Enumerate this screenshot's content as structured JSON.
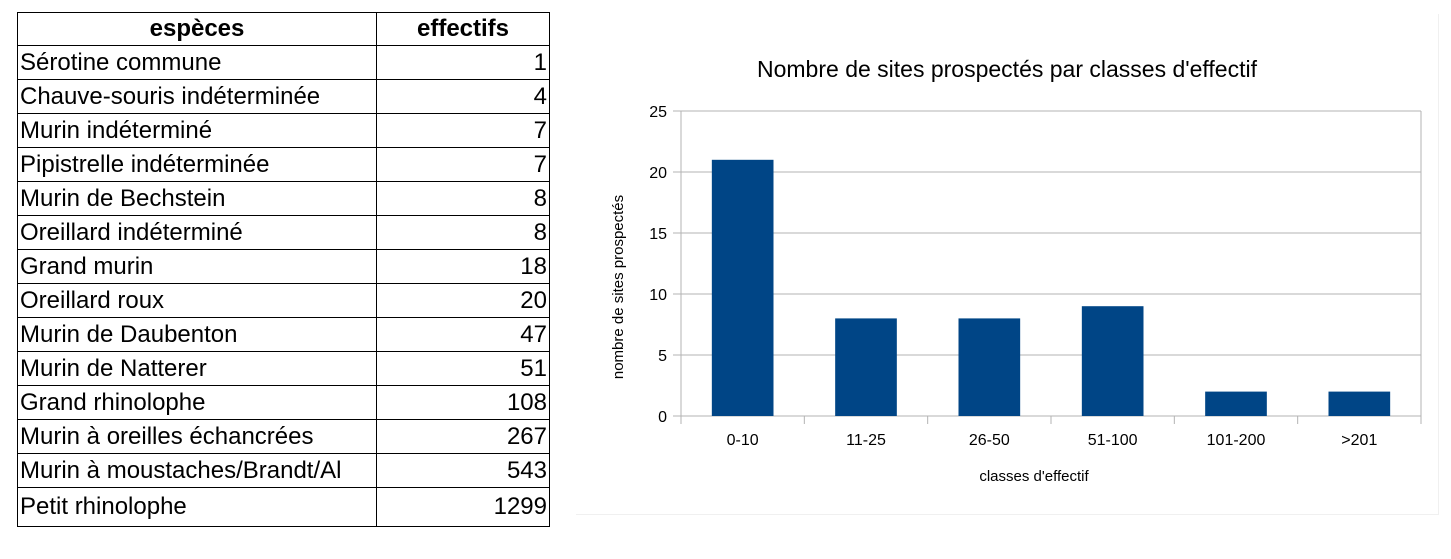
{
  "table": {
    "headers": [
      "espèces",
      "effectifs"
    ],
    "rows": [
      {
        "name": "Sérotine commune",
        "value": "1"
      },
      {
        "name": "Chauve-souris indéterminée",
        "value": "4"
      },
      {
        "name": "Murin indéterminé",
        "value": "7"
      },
      {
        "name": "Pipistrelle indéterminée",
        "value": "7"
      },
      {
        "name": "Murin de Bechstein",
        "value": "8"
      },
      {
        "name": "Oreillard indéterminé",
        "value": "8"
      },
      {
        "name": "Grand murin",
        "value": "18"
      },
      {
        "name": "Oreillard roux",
        "value": "20"
      },
      {
        "name": "Murin de Daubenton",
        "value": "47"
      },
      {
        "name": "Murin de Natterer",
        "value": "51"
      },
      {
        "name": "Grand rhinolophe",
        "value": "108"
      },
      {
        "name": "Murin à oreilles échancrées",
        "value": "267"
      },
      {
        "name": "Murin à moustaches/Brandt/Al",
        "value": "543"
      },
      {
        "name": "Petit rhinolophe",
        "value": "1299"
      }
    ]
  },
  "chart_data": {
    "type": "bar",
    "title": "Nombre de sites prospectés par classes d'effectif",
    "xlabel": "classes d'effectif",
    "ylabel": "nombre de sites prospectés",
    "categories": [
      "0-10",
      "11-25",
      "26-50",
      "51-100",
      "101-200",
      ">201"
    ],
    "values": [
      21,
      8,
      8,
      9,
      2,
      2
    ],
    "ylim": [
      0,
      25
    ],
    "yticks": [
      0,
      5,
      10,
      15,
      20,
      25
    ],
    "grid": true,
    "bar_color": "#004586",
    "legend": "none"
  }
}
